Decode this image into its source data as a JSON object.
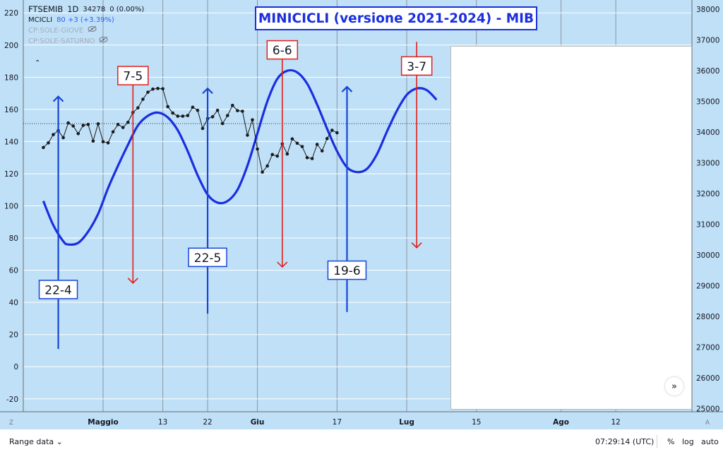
{
  "header": {
    "symbol": "FTSEMIB",
    "interval": "1D",
    "price": "34278",
    "change": "0 (0.00%)",
    "indicators": [
      {
        "name": "MCICLI",
        "value": "80 +3 (+3.39%)"
      },
      {
        "name": "CP:SOLE-GIOVE",
        "value": ""
      },
      {
        "name": "CP:SOLE-SATURNO",
        "value": ""
      }
    ]
  },
  "title": "MINICICLI (versione 2021-2024) - MIB",
  "bottom": {
    "range_label": "Range data",
    "time": "07:29:14 (UTC)",
    "percent": "%",
    "log": "log",
    "auto": "auto"
  },
  "corner_left": "Z",
  "corner_right": "A",
  "colors": {
    "background": "#bfe0f7",
    "cycle": "#1a2ee0",
    "up_arrow": "#1745d6",
    "down_arrow": "#e0201b",
    "price": "#1b1b1b"
  },
  "chart_data": {
    "type": "line",
    "x_ticks": [
      {
        "label": "Maggio",
        "date": "2024-05-01",
        "bold": true
      },
      {
        "label": "13",
        "date": "2024-05-13",
        "bold": false
      },
      {
        "label": "22",
        "date": "2024-05-22",
        "bold": false
      },
      {
        "label": "Giu",
        "date": "2024-06-01",
        "bold": true
      },
      {
        "label": "17",
        "date": "2024-06-17",
        "bold": false
      },
      {
        "label": "Lug",
        "date": "2024-07-01",
        "bold": true
      },
      {
        "label": "15",
        "date": "2024-07-15",
        "bold": false
      },
      {
        "label": "Ago",
        "date": "2024-08-01",
        "bold": true
      },
      {
        "label": "12",
        "date": "2024-08-12",
        "bold": false
      }
    ],
    "left_axis": {
      "ticks": [
        220,
        200,
        180,
        160,
        140,
        120,
        100,
        80,
        60,
        40,
        20,
        0,
        -20
      ],
      "range": [
        -28,
        228
      ]
    },
    "right_axis": {
      "ticks": [
        38000,
        37000,
        36000,
        35000,
        34000,
        33000,
        32000,
        31000,
        30000,
        29000,
        28000,
        27000,
        26000,
        25000
      ],
      "range": [
        24900,
        38300
      ]
    },
    "series": [
      {
        "name": "MCICLI",
        "axis": "left",
        "style": "smooth",
        "points": [
          [
            "2024-04-19",
            103
          ],
          [
            "2024-04-21",
            88
          ],
          [
            "2024-04-23",
            78
          ],
          [
            "2024-04-24",
            76
          ],
          [
            "2024-04-26",
            77
          ],
          [
            "2024-04-28",
            84
          ],
          [
            "2024-04-30",
            95
          ],
          [
            "2024-05-02",
            111
          ],
          [
            "2024-05-04",
            125
          ],
          [
            "2024-05-06",
            138
          ],
          [
            "2024-05-08",
            150
          ],
          [
            "2024-05-10",
            156
          ],
          [
            "2024-05-12",
            158
          ],
          [
            "2024-05-14",
            155
          ],
          [
            "2024-05-16",
            147
          ],
          [
            "2024-05-18",
            134
          ],
          [
            "2024-05-20",
            119
          ],
          [
            "2024-05-22",
            107
          ],
          [
            "2024-05-24",
            102
          ],
          [
            "2024-05-26",
            103
          ],
          [
            "2024-05-28",
            110
          ],
          [
            "2024-05-30",
            125
          ],
          [
            "2024-06-01",
            145
          ],
          [
            "2024-06-03",
            165
          ],
          [
            "2024-06-05",
            179
          ],
          [
            "2024-06-07",
            184
          ],
          [
            "2024-06-09",
            183
          ],
          [
            "2024-06-11",
            176
          ],
          [
            "2024-06-13",
            163
          ],
          [
            "2024-06-15",
            148
          ],
          [
            "2024-06-17",
            134
          ],
          [
            "2024-06-19",
            124
          ],
          [
            "2024-06-21",
            121
          ],
          [
            "2024-06-23",
            123
          ],
          [
            "2024-06-25",
            132
          ],
          [
            "2024-06-27",
            146
          ],
          [
            "2024-06-29",
            159
          ],
          [
            "2024-07-01",
            169
          ],
          [
            "2024-07-03",
            173
          ],
          [
            "2024-07-05",
            172
          ],
          [
            "2024-07-07",
            166
          ]
        ]
      },
      {
        "name": "FTSEMIB",
        "axis": "right",
        "style": "dotted-line",
        "points": [
          [
            "2024-04-19",
            33500
          ],
          [
            "2024-04-20",
            33650
          ],
          [
            "2024-04-21",
            33920
          ],
          [
            "2024-04-22",
            34050
          ],
          [
            "2024-04-23",
            33820
          ],
          [
            "2024-04-24",
            34300
          ],
          [
            "2024-04-25",
            34200
          ],
          [
            "2024-04-26",
            33950
          ],
          [
            "2024-04-27",
            34220
          ],
          [
            "2024-04-28",
            34250
          ],
          [
            "2024-04-29",
            33710
          ],
          [
            "2024-04-30",
            34270
          ],
          [
            "2024-05-01",
            33690
          ],
          [
            "2024-05-02",
            33650
          ],
          [
            "2024-05-03",
            34010
          ],
          [
            "2024-05-04",
            34250
          ],
          [
            "2024-05-05",
            34150
          ],
          [
            "2024-05-06",
            34320
          ],
          [
            "2024-05-07",
            34640
          ],
          [
            "2024-05-08",
            34790
          ],
          [
            "2024-05-09",
            35070
          ],
          [
            "2024-05-10",
            35300
          ],
          [
            "2024-05-11",
            35400
          ],
          [
            "2024-05-12",
            35420
          ],
          [
            "2024-05-13",
            35410
          ],
          [
            "2024-05-14",
            34830
          ],
          [
            "2024-05-15",
            34620
          ],
          [
            "2024-05-16",
            34520
          ],
          [
            "2024-05-17",
            34520
          ],
          [
            "2024-05-18",
            34540
          ],
          [
            "2024-05-19",
            34810
          ],
          [
            "2024-05-20",
            34710
          ],
          [
            "2024-05-21",
            34120
          ],
          [
            "2024-05-22",
            34440
          ],
          [
            "2024-05-23",
            34500
          ],
          [
            "2024-05-24",
            34710
          ],
          [
            "2024-05-25",
            34280
          ],
          [
            "2024-05-26",
            34540
          ],
          [
            "2024-05-27",
            34870
          ],
          [
            "2024-05-28",
            34700
          ],
          [
            "2024-05-29",
            34680
          ],
          [
            "2024-05-30",
            33900
          ],
          [
            "2024-05-31",
            34400
          ],
          [
            "2024-06-01",
            33450
          ],
          [
            "2024-06-02",
            32700
          ],
          [
            "2024-06-03",
            32900
          ],
          [
            "2024-06-04",
            33270
          ],
          [
            "2024-06-05",
            33220
          ],
          [
            "2024-06-06",
            33620
          ],
          [
            "2024-06-07",
            33290
          ],
          [
            "2024-06-08",
            33780
          ],
          [
            "2024-06-09",
            33640
          ],
          [
            "2024-06-10",
            33530
          ],
          [
            "2024-06-11",
            33170
          ],
          [
            "2024-06-12",
            33140
          ],
          [
            "2024-06-13",
            33600
          ],
          [
            "2024-06-14",
            33390
          ],
          [
            "2024-06-15",
            33790
          ],
          [
            "2024-06-16",
            34060
          ],
          [
            "2024-06-17",
            33980
          ]
        ]
      }
    ],
    "reference_line": {
      "axis": "right",
      "value": 34278
    },
    "cycle_markers": [
      {
        "label": "22-4",
        "date": "2024-04-22",
        "direction": "up",
        "from": 11,
        "to": 168,
        "label_at": 48
      },
      {
        "label": "7-5",
        "date": "2024-05-07",
        "direction": "down",
        "from": 186,
        "to": 52,
        "label_at": 181
      },
      {
        "label": "22-5",
        "date": "2024-05-22",
        "direction": "up",
        "from": 33,
        "to": 173,
        "label_at": 68
      },
      {
        "label": "6-6",
        "date": "2024-06-06",
        "direction": "down",
        "from": 202,
        "to": 62,
        "label_at": 197
      },
      {
        "label": "19-6",
        "date": "2024-06-19",
        "direction": "up",
        "from": 34,
        "to": 174,
        "label_at": 60
      },
      {
        "label": "3-7",
        "date": "2024-07-03",
        "direction": "down",
        "from": 202,
        "to": 74,
        "label_at": 187
      }
    ]
  }
}
